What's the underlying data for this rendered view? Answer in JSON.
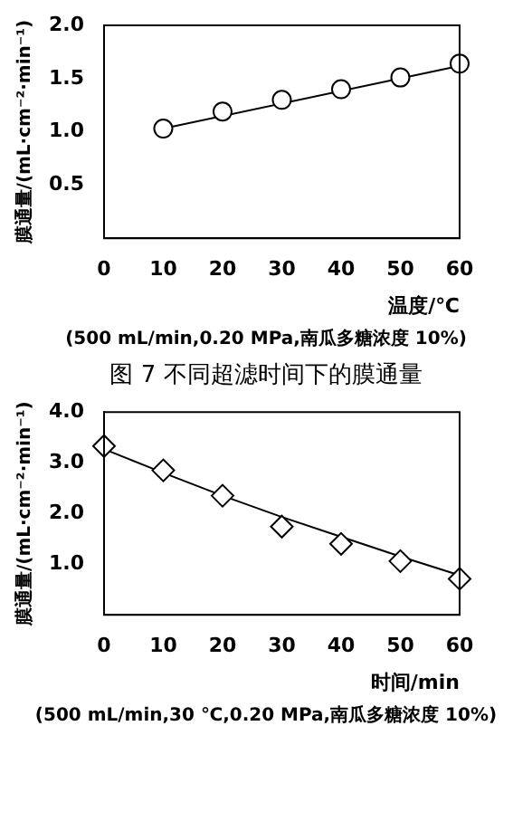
{
  "chart_data": [
    {
      "type": "scatter",
      "xlabel": "温度/℃",
      "ylabel": "膜通量/(mL·cm⁻²·min⁻¹)",
      "annotations": [
        "(500 mL/min,0.20 MPa,南瓜多糖浓度 10%)"
      ],
      "xlim": [
        0,
        60
      ],
      "xticks": [
        0,
        10,
        20,
        30,
        40,
        50,
        60
      ],
      "ylim": [
        0,
        2
      ],
      "yticks": [
        0.5,
        {
          "value": 1,
          "label": "1.0"
        },
        1.5,
        {
          "value": 2,
          "label": "2.0"
        }
      ],
      "grid": false,
      "legend": false,
      "series": [
        {
          "type": "scatter",
          "marker": "circle",
          "color": "#000000",
          "x": [
            10,
            20,
            30,
            40,
            50,
            60
          ],
          "values": [
            1.03,
            1.19,
            1.3,
            1.4,
            1.51,
            1.64
          ]
        },
        {
          "type": "line",
          "marker": "none",
          "color": "#000000",
          "x": [
            10,
            60
          ],
          "values": [
            1.03,
            1.62
          ]
        }
      ]
    },
    {
      "type": "scatter",
      "title": "图 7  不同超滤时间下的膜通量",
      "xlabel": "时间/min",
      "ylabel": "膜通量/(mL·cm⁻²·min⁻¹)",
      "annotations": [
        "(500 mL/min,30 ℃,0.20 MPa,南瓜多糖浓度 10%)"
      ],
      "xlim": [
        0,
        60
      ],
      "xticks": [
        0,
        10,
        20,
        30,
        40,
        50,
        60
      ],
      "ylim": [
        0,
        4
      ],
      "yticks": [
        {
          "value": 1,
          "label": "1.0"
        },
        {
          "value": 2,
          "label": "2.0"
        },
        {
          "value": 3,
          "label": "3.0"
        },
        {
          "value": 4,
          "label": "4.0"
        }
      ],
      "grid": false,
      "legend": false,
      "series": [
        {
          "type": "scatter",
          "marker": "diamond",
          "color": "#000000",
          "x": [
            0,
            10,
            20,
            30,
            40,
            50,
            60
          ],
          "values": [
            3.33,
            2.85,
            2.35,
            1.74,
            1.4,
            1.06,
            0.71
          ]
        },
        {
          "type": "line",
          "marker": "none",
          "color": "#000000",
          "x": [
            0,
            10,
            20,
            30,
            40,
            50,
            60
          ],
          "values": [
            3.27,
            2.8,
            2.35,
            1.93,
            1.54,
            1.15,
            0.78
          ]
        }
      ]
    }
  ]
}
